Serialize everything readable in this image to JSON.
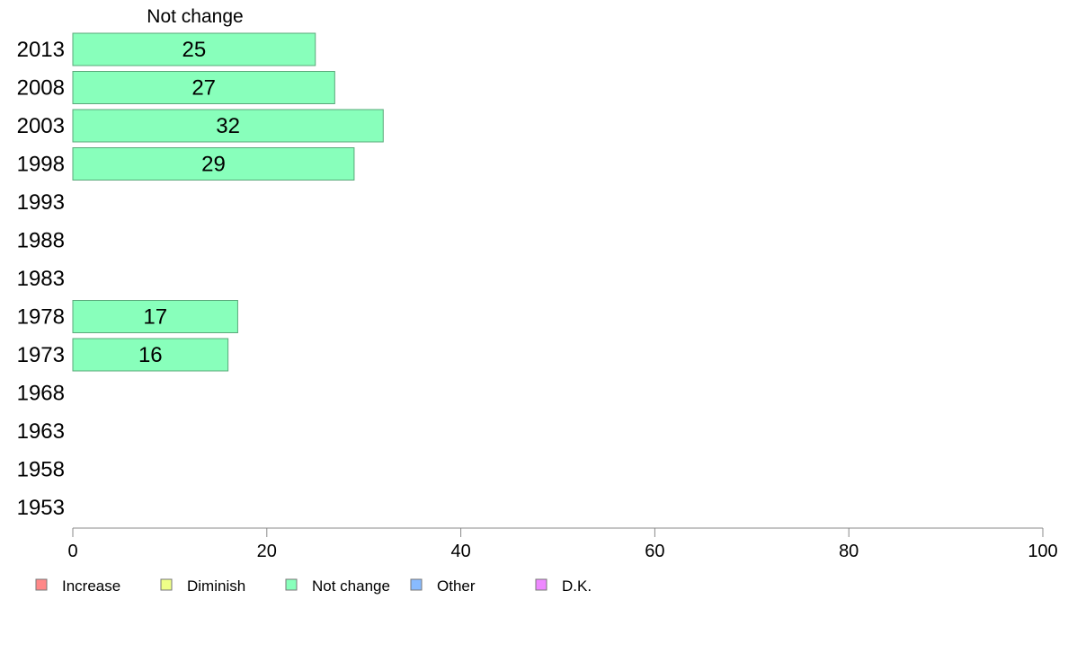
{
  "chart_data": {
    "type": "bar",
    "orientation": "horizontal",
    "title": "Not change",
    "xlabel": "",
    "ylabel": "",
    "categories": [
      "2013",
      "2008",
      "2003",
      "1998",
      "1993",
      "1988",
      "1983",
      "1978",
      "1973",
      "1968",
      "1963",
      "1958",
      "1953"
    ],
    "series": [
      {
        "name": "Not change",
        "values": [
          25,
          27,
          32,
          29,
          null,
          null,
          null,
          17,
          16,
          null,
          null,
          null,
          null
        ]
      }
    ],
    "xlim": [
      0,
      100
    ],
    "xticks": [
      0,
      20,
      40,
      60,
      80,
      100
    ],
    "grid": false,
    "legend_position": "bottom-left",
    "legend": [
      {
        "label": "Increase",
        "color": "#ff8888"
      },
      {
        "label": "Diminish",
        "color": "#eeff88"
      },
      {
        "label": "Not change",
        "color": "#88ffbb"
      },
      {
        "label": "Other",
        "color": "#88bbff"
      },
      {
        "label": "D.K.",
        "color": "#ee88ff"
      }
    ],
    "bar_color": "#88ffbb",
    "bar_stroke": "#5aa87a",
    "axis_color": "#888888"
  }
}
